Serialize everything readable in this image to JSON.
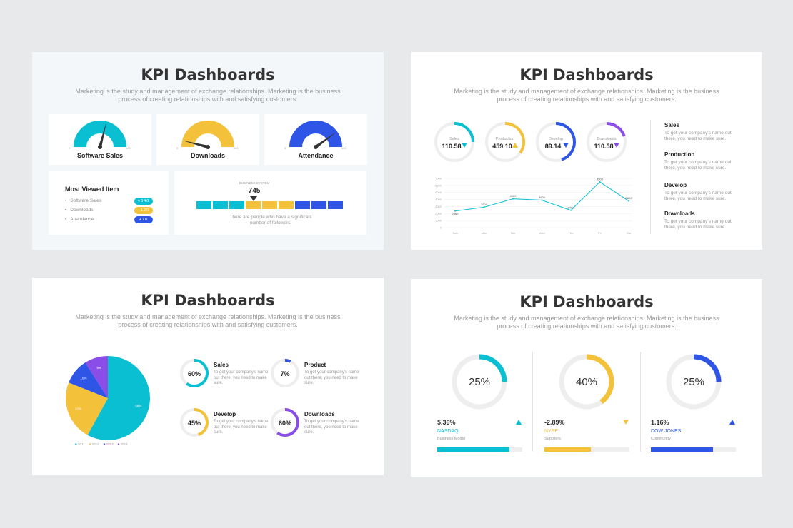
{
  "title": "KPI Dashboards",
  "subtitle": "Marketing is the study and management of exchange relationships. Marketing is the business process of creating relationships with and satisfying customers.",
  "colors": {
    "cyan": "#0bbfd2",
    "yellow": "#f4c13b",
    "blue": "#2e55e6",
    "purple": "#8a4de8",
    "gray": "#eeeeee"
  },
  "slide1": {
    "gauges": [
      {
        "label": "Software Sales",
        "min": "0",
        "max": "100",
        "color": "#0bbfd2",
        "value": 58
      },
      {
        "label": "Downloads",
        "min": "0",
        "max": "100",
        "color": "#f4c13b",
        "value": 8
      },
      {
        "label": "Attendance",
        "min": "0",
        "max": "100",
        "color": "#2e55e6",
        "value": 80
      }
    ],
    "most_viewed": {
      "title": "Most Viewed Item",
      "items": [
        {
          "label": "Software Sales",
          "badge": "+340",
          "color": "#0bbfd2"
        },
        {
          "label": "Downloads",
          "badge": "+120",
          "color": "#f4c13b"
        },
        {
          "label": "Attendance",
          "badge": "+70",
          "color": "#2e55e6"
        }
      ]
    },
    "business": {
      "caption": "BUSINESS SYSTEM",
      "value": "745",
      "segments": [
        "#0bbfd2",
        "#0bbfd2",
        "#0bbfd2",
        "#f4c13b",
        "#f4c13b",
        "#f4c13b",
        "#2e55e6",
        "#2e55e6",
        "#2e55e6"
      ],
      "pointer_segment": 3,
      "note": "There are people who have a significant number of followers."
    }
  },
  "slide2": {
    "donuts": [
      {
        "label": "Sales",
        "value": "110.58",
        "trend": "down",
        "color": "#0bbfd2",
        "fraction": 0.25
      },
      {
        "label": "Production",
        "value": "459.10",
        "trend": "up",
        "color": "#f4c13b",
        "fraction": 0.35
      },
      {
        "label": "Develop",
        "value": "89.14",
        "trend": "down",
        "color": "#2e55e6",
        "fraction": 0.45
      },
      {
        "label": "Downloads",
        "value": "110.58",
        "trend": "down",
        "color": "#8a4de8",
        "fraction": 0.2
      }
    ],
    "side": [
      {
        "title": "Sales",
        "text": "To get your company's name out there, you need to make sure."
      },
      {
        "title": "Production",
        "text": "To get your company's name out there, you need to make sure."
      },
      {
        "title": "Develop",
        "text": "To get your company's name out there, you need to make sure."
      },
      {
        "title": "Downloads",
        "text": "To get your company's name out there, you need to make sure."
      }
    ]
  },
  "chart_data": {
    "type": "line",
    "categories": [
      "Sun",
      "Mon",
      "Tue",
      "Wed",
      "Thu",
      "Fri",
      "Sat"
    ],
    "values": [
      2360,
      2900,
      4100,
      3900,
      2460,
      6500,
      3800
    ],
    "value_labels": [
      "2360",
      "2900",
      "4100",
      "3900",
      "2460",
      "6500",
      "3800"
    ],
    "yticks": [
      "7000",
      "6000",
      "5000",
      "4000",
      "3000",
      "2000",
      "1000",
      "0"
    ],
    "ylim": [
      0,
      7000
    ],
    "color": "#0bbfd2",
    "grid": true
  },
  "slide3": {
    "pie": {
      "slices": [
        {
          "label": "2011",
          "value": 58,
          "text": "58%",
          "color": "#0bbfd2"
        },
        {
          "label": "2012",
          "value": 23,
          "text": "23%",
          "color": "#f4c13b"
        },
        {
          "label": "2013",
          "value": 10,
          "text": "10%",
          "color": "#2e55e6"
        },
        {
          "label": "2014",
          "value": 9,
          "text": "9%",
          "color": "#8a4de8"
        }
      ]
    },
    "items": [
      {
        "title": "Sales",
        "pct": "60%",
        "fraction": 0.6,
        "color": "#0bbfd2",
        "text": "To get your company's name out there, you need to make sure."
      },
      {
        "title": "Product",
        "pct": "7%",
        "fraction": 0.07,
        "color": "#2e55e6",
        "text": "To get your company's name out there, you need to make sure."
      },
      {
        "title": "Develop",
        "pct": "45%",
        "fraction": 0.45,
        "color": "#f4c13b",
        "text": "To get your company's name out there, you need to make sure."
      },
      {
        "title": "Downloads",
        "pct": "60%",
        "fraction": 0.6,
        "color": "#8a4de8",
        "text": "To get your company's name out there, you need to make sure."
      }
    ]
  },
  "slide4": {
    "kpis": [
      {
        "pct": "25%",
        "fraction": 0.25,
        "value": "5.36%",
        "trend": "up",
        "name": "NASDAQ",
        "sub": "Business Model",
        "color": "#0bbfd2",
        "bar": 0.85
      },
      {
        "pct": "40%",
        "fraction": 0.4,
        "value": "-2.89%",
        "trend": "down",
        "name": "NYSE",
        "sub": "Suppliers",
        "color": "#f4c13b",
        "bar": 0.55
      },
      {
        "pct": "25%",
        "fraction": 0.25,
        "value": "1.16%",
        "trend": "up",
        "name": "DOW JONES",
        "sub": "Community",
        "color": "#2e55e6",
        "bar": 0.73
      }
    ]
  }
}
